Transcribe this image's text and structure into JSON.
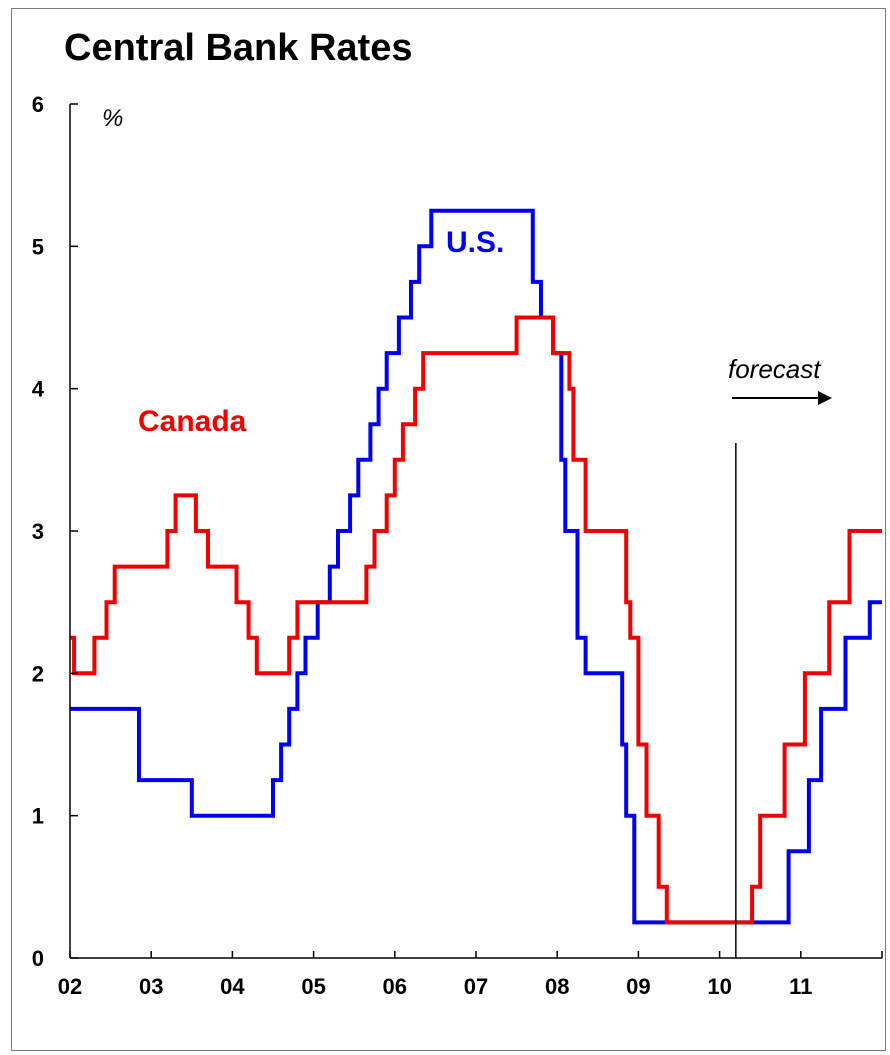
{
  "chart_data": {
    "type": "line",
    "title": "Central Bank Rates",
    "ylabel": "%",
    "xlabel": "",
    "x_tick_labels": [
      "02",
      "03",
      "04",
      "05",
      "06",
      "07",
      "08",
      "09",
      "10",
      "11"
    ],
    "x_range": [
      2002.0,
      2012.0
    ],
    "ylim": [
      0,
      6
    ],
    "y_ticks": [
      0,
      1,
      2,
      3,
      4,
      5,
      6
    ],
    "grid": false,
    "forecast_start": 2010.2,
    "annotations": {
      "forecast": "forecast"
    },
    "series": [
      {
        "name": "U.S.",
        "color": "#0000ee",
        "step_points": [
          [
            2002.0,
            1.75
          ],
          [
            2002.85,
            1.25
          ],
          [
            2003.5,
            1.0
          ],
          [
            2004.5,
            1.25
          ],
          [
            2004.6,
            1.5
          ],
          [
            2004.7,
            1.75
          ],
          [
            2004.8,
            2.0
          ],
          [
            2004.9,
            2.25
          ],
          [
            2005.05,
            2.5
          ],
          [
            2005.2,
            2.75
          ],
          [
            2005.3,
            3.0
          ],
          [
            2005.45,
            3.25
          ],
          [
            2005.55,
            3.5
          ],
          [
            2005.7,
            3.75
          ],
          [
            2005.8,
            4.0
          ],
          [
            2005.9,
            4.25
          ],
          [
            2006.05,
            4.5
          ],
          [
            2006.2,
            4.75
          ],
          [
            2006.3,
            5.0
          ],
          [
            2006.45,
            5.25
          ],
          [
            2007.7,
            4.75
          ],
          [
            2007.8,
            4.5
          ],
          [
            2007.95,
            4.25
          ],
          [
            2008.05,
            3.5
          ],
          [
            2008.1,
            3.0
          ],
          [
            2008.25,
            2.25
          ],
          [
            2008.35,
            2.0
          ],
          [
            2008.8,
            1.5
          ],
          [
            2008.85,
            1.0
          ],
          [
            2008.95,
            0.25
          ],
          [
            2010.85,
            0.75
          ],
          [
            2011.1,
            1.25
          ],
          [
            2011.25,
            1.75
          ],
          [
            2011.55,
            2.25
          ],
          [
            2011.85,
            2.5
          ],
          [
            2012.0,
            2.5
          ]
        ]
      },
      {
        "name": "Canada",
        "color": "#ee0000",
        "step_points": [
          [
            2002.0,
            2.25
          ],
          [
            2002.05,
            2.0
          ],
          [
            2002.3,
            2.25
          ],
          [
            2002.45,
            2.5
          ],
          [
            2002.55,
            2.75
          ],
          [
            2003.2,
            3.0
          ],
          [
            2003.3,
            3.25
          ],
          [
            2003.55,
            3.0
          ],
          [
            2003.7,
            2.75
          ],
          [
            2004.05,
            2.5
          ],
          [
            2004.2,
            2.25
          ],
          [
            2004.3,
            2.0
          ],
          [
            2004.7,
            2.25
          ],
          [
            2004.8,
            2.5
          ],
          [
            2005.65,
            2.75
          ],
          [
            2005.75,
            3.0
          ],
          [
            2005.9,
            3.25
          ],
          [
            2006.0,
            3.5
          ],
          [
            2006.1,
            3.75
          ],
          [
            2006.25,
            4.0
          ],
          [
            2006.35,
            4.25
          ],
          [
            2007.5,
            4.5
          ],
          [
            2007.95,
            4.25
          ],
          [
            2008.15,
            4.0
          ],
          [
            2008.2,
            3.5
          ],
          [
            2008.35,
            3.0
          ],
          [
            2008.85,
            2.5
          ],
          [
            2008.9,
            2.25
          ],
          [
            2009.0,
            1.5
          ],
          [
            2009.1,
            1.0
          ],
          [
            2009.25,
            0.5
          ],
          [
            2009.35,
            0.25
          ],
          [
            2010.4,
            0.5
          ],
          [
            2010.5,
            1.0
          ],
          [
            2010.8,
            1.5
          ],
          [
            2011.05,
            2.0
          ],
          [
            2011.35,
            2.5
          ],
          [
            2011.6,
            3.0
          ],
          [
            2012.0,
            3.0
          ]
        ]
      }
    ]
  }
}
